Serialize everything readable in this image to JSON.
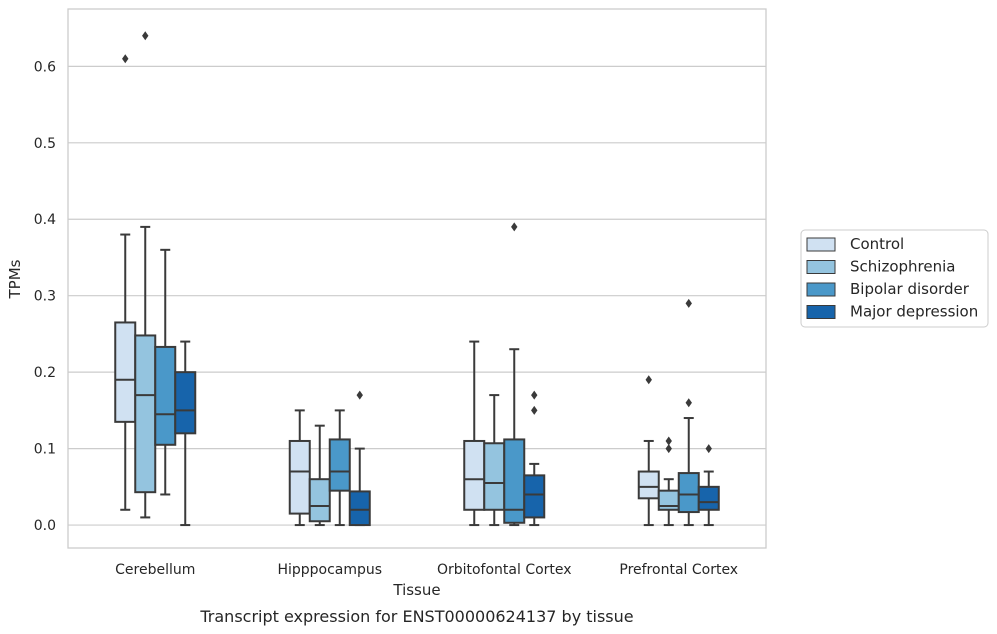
{
  "caption": "Transcript expression for ENST00000624137 by tissue",
  "chart_data": {
    "type": "box",
    "xlabel": "Tissue",
    "ylabel": "TPMs",
    "ylim": [
      -0.03,
      0.675
    ],
    "yticks": [
      "0.0",
      "0.1",
      "0.2",
      "0.3",
      "0.4",
      "0.5",
      "0.6"
    ],
    "grid": "horizontal",
    "legend_position": "right",
    "categories": [
      "Cerebellum",
      "Hipppocampus",
      "Orbitofontal Cortex",
      "Prefrontal Cortex"
    ],
    "series": [
      {
        "name": "Control",
        "color": "#d0e1f2",
        "boxes": [
          {
            "whisker_low": 0.02,
            "q1": 0.135,
            "median": 0.19,
            "q3": 0.265,
            "whisker_high": 0.38,
            "outliers": [
              0.61
            ]
          },
          {
            "whisker_low": 0.0,
            "q1": 0.015,
            "median": 0.07,
            "q3": 0.11,
            "whisker_high": 0.15,
            "outliers": []
          },
          {
            "whisker_low": 0.0,
            "q1": 0.02,
            "median": 0.06,
            "q3": 0.11,
            "whisker_high": 0.24,
            "outliers": []
          },
          {
            "whisker_low": 0.0,
            "q1": 0.035,
            "median": 0.05,
            "q3": 0.07,
            "whisker_high": 0.11,
            "outliers": [
              0.19
            ]
          }
        ]
      },
      {
        "name": "Schizophrenia",
        "color": "#94c4df",
        "boxes": [
          {
            "whisker_low": 0.01,
            "q1": 0.043,
            "median": 0.17,
            "q3": 0.248,
            "whisker_high": 0.39,
            "outliers": [
              0.64
            ]
          },
          {
            "whisker_low": 0.0,
            "q1": 0.005,
            "median": 0.025,
            "q3": 0.06,
            "whisker_high": 0.13,
            "outliers": []
          },
          {
            "whisker_low": 0.0,
            "q1": 0.02,
            "median": 0.055,
            "q3": 0.107,
            "whisker_high": 0.17,
            "outliers": []
          },
          {
            "whisker_low": 0.0,
            "q1": 0.02,
            "median": 0.025,
            "q3": 0.045,
            "whisker_high": 0.06,
            "outliers": [
              0.1,
              0.11
            ]
          }
        ]
      },
      {
        "name": "Bipolar disorder",
        "color": "#4a98c9",
        "boxes": [
          {
            "whisker_low": 0.04,
            "q1": 0.105,
            "median": 0.145,
            "q3": 0.233,
            "whisker_high": 0.36,
            "outliers": []
          },
          {
            "whisker_low": 0.0,
            "q1": 0.045,
            "median": 0.07,
            "q3": 0.112,
            "whisker_high": 0.15,
            "outliers": []
          },
          {
            "whisker_low": 0.0,
            "q1": 0.003,
            "median": 0.02,
            "q3": 0.112,
            "whisker_high": 0.23,
            "outliers": [
              0.39
            ]
          },
          {
            "whisker_low": 0.0,
            "q1": 0.017,
            "median": 0.04,
            "q3": 0.068,
            "whisker_high": 0.14,
            "outliers": [
              0.16,
              0.29
            ]
          }
        ]
      },
      {
        "name": "Major depression",
        "color": "#1764ab",
        "boxes": [
          {
            "whisker_low": 0.0,
            "q1": 0.12,
            "median": 0.15,
            "q3": 0.2,
            "whisker_high": 0.24,
            "outliers": []
          },
          {
            "whisker_low": 0.0,
            "q1": 0.0,
            "median": 0.02,
            "q3": 0.044,
            "whisker_high": 0.1,
            "outliers": [
              0.17
            ]
          },
          {
            "whisker_low": 0.0,
            "q1": 0.01,
            "median": 0.04,
            "q3": 0.065,
            "whisker_high": 0.08,
            "outliers": [
              0.15,
              0.17
            ]
          },
          {
            "whisker_low": 0.0,
            "q1": 0.02,
            "median": 0.03,
            "q3": 0.05,
            "whisker_high": 0.07,
            "outliers": [
              0.1
            ]
          }
        ]
      }
    ]
  }
}
